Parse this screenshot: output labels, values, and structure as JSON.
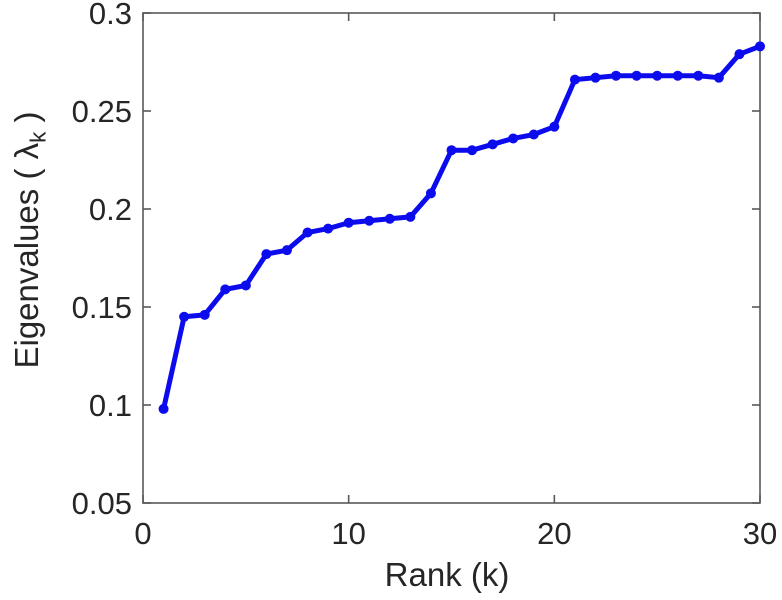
{
  "chart_data": {
    "type": "line",
    "title": "",
    "xlabel": "Rank (k)",
    "ylabel": "Eigenvalues ( λk )",
    "ylabel_parts": {
      "prefix": "Eigenvalues ( λ",
      "subscript": "k",
      "suffix": " )"
    },
    "series": [
      {
        "name": "eigenvalues",
        "x": [
          1,
          2,
          3,
          4,
          5,
          6,
          7,
          8,
          9,
          10,
          11,
          12,
          13,
          14,
          15,
          16,
          17,
          18,
          19,
          20,
          21,
          22,
          23,
          24,
          25,
          26,
          27,
          28,
          29,
          30
        ],
        "y": [
          0.098,
          0.145,
          0.146,
          0.159,
          0.161,
          0.177,
          0.179,
          0.188,
          0.19,
          0.193,
          0.194,
          0.195,
          0.196,
          0.208,
          0.23,
          0.23,
          0.233,
          0.236,
          0.238,
          0.242,
          0.266,
          0.267,
          0.268,
          0.268,
          0.268,
          0.268,
          0.268,
          0.267,
          0.279,
          0.283
        ]
      }
    ],
    "xlim": [
      0,
      30
    ],
    "ylim": [
      0.05,
      0.3
    ],
    "xticks": [
      0,
      10,
      20,
      30
    ],
    "xtick_labels": [
      "0",
      "10",
      "20",
      "30"
    ],
    "yticks": [
      0.05,
      0.1,
      0.15,
      0.2,
      0.25,
      0.3
    ],
    "ytick_labels": [
      "0.05",
      "0.1",
      "0.15",
      "0.2",
      "0.25",
      "0.3"
    ],
    "grid": false,
    "legend": null,
    "marker": "filled-circle",
    "line_color": "#0b0bee",
    "axis_color": "#595959",
    "text_color": "#262626"
  }
}
